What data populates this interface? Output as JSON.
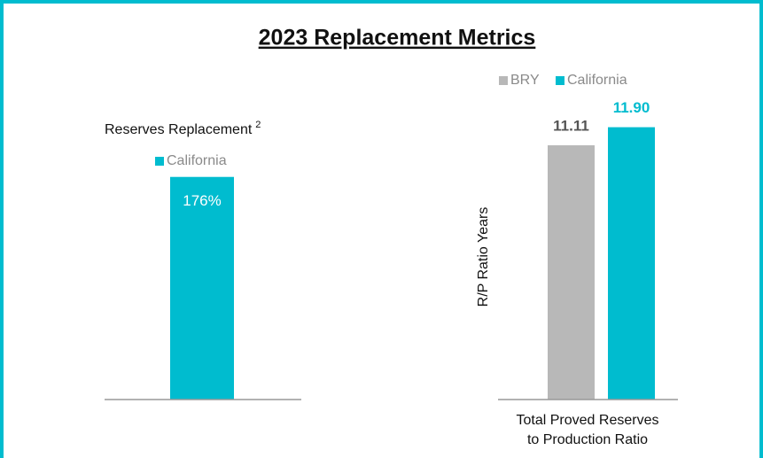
{
  "title": "2023 Replacement Metrics",
  "chart_data": [
    {
      "type": "bar",
      "title": "Reserves Replacement",
      "title_note": "2",
      "categories": [
        null
      ],
      "series": [
        {
          "name": "California",
          "color": "#00bccf",
          "values": [
            176
          ],
          "value_labels": [
            "176%"
          ]
        }
      ],
      "ylim": [
        0,
        180
      ]
    },
    {
      "type": "bar",
      "ylabel": "R/P Ratio Years",
      "categories": [
        [
          "Total Proved Reserves",
          "to Production Ratio"
        ]
      ],
      "series": [
        {
          "name": "BRY",
          "color": "#b8b8b8",
          "values": [
            11.11
          ]
        },
        {
          "name": "California",
          "color": "#00bccf",
          "values": [
            11.9
          ],
          "value_labels": [
            "11.90"
          ]
        }
      ],
      "ylim": [
        0,
        12
      ]
    }
  ]
}
